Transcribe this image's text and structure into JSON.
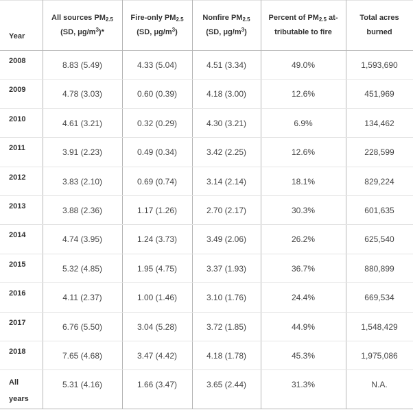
{
  "headers": {
    "year": "Year",
    "all_sources": {
      "line1_pre": "All sources PM",
      "line1_sub": "2.5",
      "line2_pre": "(SD, μg/m",
      "line2_sup": "3",
      "line2_post": ")*"
    },
    "fire_only": {
      "line1_pre": "Fire-only PM",
      "line1_sub": "2.5",
      "line2_pre": "(SD, μg/m",
      "line2_sup": "3",
      "line2_post": ")"
    },
    "nonfire": {
      "line1_pre": "Nonfire PM",
      "line1_sub": "2.5",
      "line2_pre": "(SD, μg/m",
      "line2_sup": "3",
      "line2_post": ")"
    },
    "percent_fire": {
      "line1_pre": "Percent of PM",
      "line1_sub": "2.5",
      "line1_post": " at-",
      "line2": "tributable to fire"
    },
    "acres": {
      "line1": "Total acres",
      "line2": "burned"
    }
  },
  "rows": [
    {
      "year": "2008",
      "all": "8.83 (5.49)",
      "fire": "4.33 (5.04)",
      "nonfire": "4.51 (3.34)",
      "pct": "49.0%",
      "acres": "1,593,690"
    },
    {
      "year": "2009",
      "all": "4.78 (3.03)",
      "fire": "0.60 (0.39)",
      "nonfire": "4.18 (3.00)",
      "pct": "12.6%",
      "acres": "451,969"
    },
    {
      "year": "2010",
      "all": "4.61 (3.21)",
      "fire": "0.32 (0.29)",
      "nonfire": "4.30 (3.21)",
      "pct": "6.9%",
      "acres": "134,462"
    },
    {
      "year": "2011",
      "all": "3.91 (2.23)",
      "fire": "0.49 (0.34)",
      "nonfire": "3.42 (2.25)",
      "pct": "12.6%",
      "acres": "228,599"
    },
    {
      "year": "2012",
      "all": "3.83 (2.10)",
      "fire": "0.69 (0.74)",
      "nonfire": "3.14 (2.14)",
      "pct": "18.1%",
      "acres": "829,224"
    },
    {
      "year": "2013",
      "all": "3.88 (2.36)",
      "fire": "1.17 (1.26)",
      "nonfire": "2.70 (2.17)",
      "pct": "30.3%",
      "acres": "601,635"
    },
    {
      "year": "2014",
      "all": "4.74 (3.95)",
      "fire": "1.24 (3.73)",
      "nonfire": "3.49 (2.06)",
      "pct": "26.2%",
      "acres": "625,540"
    },
    {
      "year": "2015",
      "all": "5.32 (4.85)",
      "fire": "1.95 (4.75)",
      "nonfire": "3.37 (1.93)",
      "pct": "36.7%",
      "acres": "880,899"
    },
    {
      "year": "2016",
      "all": "4.11 (2.37)",
      "fire": "1.00 (1.46)",
      "nonfire": "3.10 (1.76)",
      "pct": "24.4%",
      "acres": "669,534"
    },
    {
      "year": "2017",
      "all": "6.76 (5.50)",
      "fire": "3.04 (5.28)",
      "nonfire": "3.72 (1.85)",
      "pct": "44.9%",
      "acres": "1,548,429"
    },
    {
      "year": "2018",
      "all": "7.65 (4.68)",
      "fire": "3.47 (4.42)",
      "nonfire": "4.18 (1.78)",
      "pct": "45.3%",
      "acres": "1,975,086"
    }
  ],
  "summary": {
    "year_line1": "All",
    "year_line2": "years",
    "all": "5.31 (4.16)",
    "fire": "1.66 (3.47)",
    "nonfire": "3.65 (2.44)",
    "pct": "31.3%",
    "acres": "N.A."
  }
}
